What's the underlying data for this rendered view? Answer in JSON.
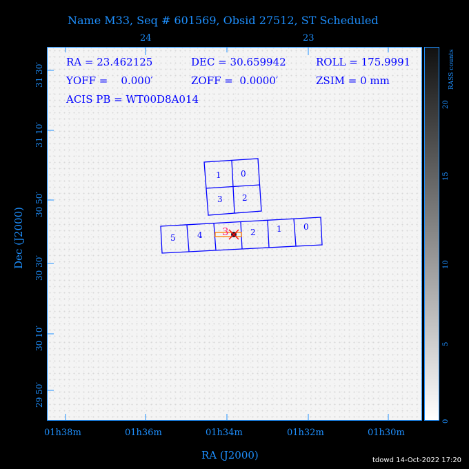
{
  "title": "Name M33, Seq # 601569, Obsid 27512, ST Scheduled",
  "info": {
    "ra": "RA = 23.462125",
    "dec": "DEC = 30.659942",
    "roll": "ROLL = 175.9991",
    "yoff": "YOFF =    0.000′",
    "zoff": "ZOFF =  0.0000′",
    "zsim": "ZSIM = 0 mm",
    "acis_pb": "ACIS PB = WT00D8A014"
  },
  "axes": {
    "xlabel": "RA (J2000)",
    "ylabel": "Dec (J2000)",
    "x_ticks": [
      "01h38m",
      "01h36m",
      "01h34m",
      "01h32m",
      "01h30m"
    ],
    "top_ticks": [
      "24",
      "23"
    ],
    "y_ticks": [
      "31 30′",
      "31 10′",
      "30 50′",
      "30 30′",
      "30 10′",
      "29 50′"
    ]
  },
  "colorbar": {
    "label": "RASS counts",
    "ticks": [
      "0",
      "5",
      "10",
      "15",
      "20"
    ],
    "range": [
      0,
      22
    ]
  },
  "chips": {
    "i_array": [
      "1",
      "0",
      "3",
      "2"
    ],
    "s_array": [
      "5",
      "4",
      "3",
      "2",
      "1",
      "0"
    ]
  },
  "footer": "tdowd 14-Oct-2022 17:20",
  "colors": {
    "axis": "#1e90ff",
    "text": "#0000ff",
    "chip": "#0000ff",
    "aimpoint": "#ff1a6e",
    "grating": "#ff8000"
  }
}
